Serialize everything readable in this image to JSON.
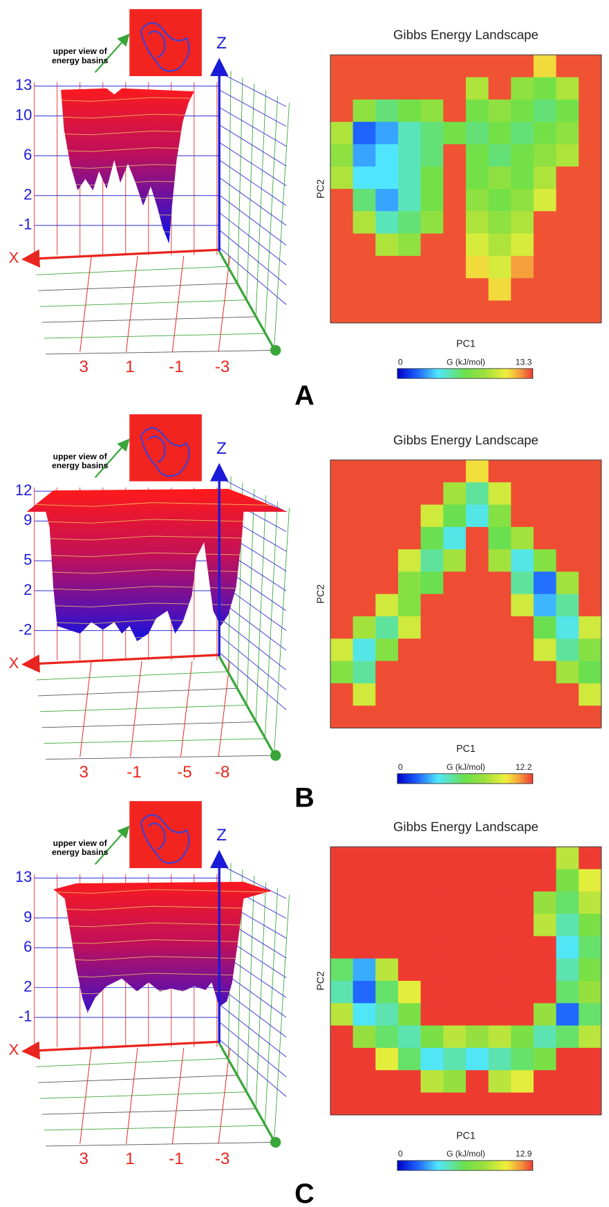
{
  "chart_data": [
    {
      "type": "surface3d",
      "annotation_lines": [
        "upper view of",
        "energy basins"
      ],
      "x_label": "X",
      "z_label": "Z",
      "xlim": [
        3,
        -3
      ],
      "xticks": [
        3,
        1,
        -1,
        -3
      ],
      "zlim": [
        -1,
        13
      ],
      "zticks": [
        13,
        10,
        6,
        2,
        -1
      ]
    },
    {
      "type": "heatmap",
      "title": "Gibbs Energy Landscape",
      "x_label": "PC1",
      "y_label": "PC2",
      "panel_label": "A",
      "colorbar": {
        "label": "G (kJ/mol)",
        "min": 0,
        "max": 13.3
      },
      "values": [
        [
          13,
          13,
          13,
          13,
          13,
          13,
          13,
          13,
          13,
          11,
          13,
          13
        ],
        [
          13,
          13,
          13,
          13,
          13,
          13,
          9,
          13,
          8,
          7,
          9,
          13
        ],
        [
          13,
          8,
          6,
          7,
          8,
          13,
          7,
          8,
          7,
          6,
          7,
          13
        ],
        [
          9,
          2,
          3,
          5,
          6,
          7,
          6,
          7,
          6,
          7,
          8,
          13
        ],
        [
          8,
          3,
          4,
          5,
          6,
          13,
          7,
          6,
          7,
          8,
          9,
          13
        ],
        [
          9,
          4,
          4,
          5,
          7,
          13,
          7,
          8,
          7,
          9,
          13,
          13
        ],
        [
          13,
          6,
          3,
          5,
          7,
          13,
          8,
          7,
          8,
          10,
          13,
          13
        ],
        [
          13,
          9,
          5,
          6,
          8,
          13,
          9,
          8,
          9,
          13,
          13,
          13
        ],
        [
          13,
          13,
          9,
          8,
          13,
          13,
          10,
          9,
          10,
          13,
          13,
          13
        ],
        [
          13,
          13,
          13,
          13,
          13,
          13,
          11,
          10,
          12,
          13,
          13,
          13
        ],
        [
          13,
          13,
          13,
          13,
          13,
          13,
          13,
          11,
          13,
          13,
          13,
          13
        ],
        [
          13,
          13,
          13,
          13,
          13,
          13,
          13,
          13,
          13,
          13,
          13,
          13
        ]
      ]
    },
    {
      "type": "surface3d",
      "annotation_lines": [
        "upper view of",
        "energy basins"
      ],
      "x_label": "X",
      "z_label": "Z",
      "xlim": [
        3,
        -8
      ],
      "xticks": [
        3,
        -1,
        -5,
        -8
      ],
      "zlim": [
        -2,
        12
      ],
      "zticks": [
        12,
        9,
        5,
        2,
        -2
      ]
    },
    {
      "type": "heatmap",
      "title": "Gibbs Energy Landscape",
      "x_label": "PC1",
      "y_label": "PC2",
      "panel_label": "B",
      "colorbar": {
        "label": "G (kJ/mol)",
        "min": 0,
        "max": 12.2
      },
      "values": [
        [
          12,
          12,
          12,
          12,
          12,
          12,
          10,
          12,
          12,
          12,
          12,
          12
        ],
        [
          12,
          12,
          12,
          12,
          12,
          8,
          5,
          9,
          12,
          12,
          12,
          12
        ],
        [
          12,
          12,
          12,
          12,
          9,
          6,
          4,
          7,
          12,
          12,
          12,
          12
        ],
        [
          12,
          12,
          12,
          12,
          6,
          4,
          12,
          6,
          8,
          12,
          12,
          12
        ],
        [
          12,
          12,
          12,
          9,
          5,
          8,
          12,
          8,
          4,
          7,
          12,
          12
        ],
        [
          12,
          12,
          12,
          7,
          6,
          12,
          12,
          12,
          5,
          2,
          8,
          12
        ],
        [
          12,
          12,
          9,
          7,
          12,
          12,
          12,
          12,
          9,
          3,
          5,
          12
        ],
        [
          12,
          8,
          5,
          9,
          12,
          12,
          12,
          12,
          12,
          6,
          4,
          9
        ],
        [
          9,
          4,
          7,
          12,
          12,
          12,
          12,
          12,
          12,
          9,
          5,
          7
        ],
        [
          7,
          5,
          12,
          12,
          12,
          12,
          12,
          12,
          12,
          12,
          8,
          6
        ],
        [
          12,
          9,
          12,
          12,
          12,
          12,
          12,
          12,
          12,
          12,
          12,
          9
        ],
        [
          12,
          12,
          12,
          12,
          12,
          12,
          12,
          12,
          12,
          12,
          12,
          12
        ]
      ]
    },
    {
      "type": "surface3d",
      "annotation_lines": [
        "upper view of",
        "energy basins"
      ],
      "x_label": "X",
      "z_label": "Z",
      "xlim": [
        3,
        -3
      ],
      "xticks": [
        3,
        1,
        -1,
        -3
      ],
      "zlim": [
        -1,
        13
      ],
      "zticks": [
        13,
        9,
        6,
        2,
        -1
      ]
    },
    {
      "type": "heatmap",
      "title": "Gibbs Energy Landscape",
      "x_label": "PC1",
      "y_label": "PC2",
      "panel_label": "C",
      "colorbar": {
        "label": "G (kJ/mol)",
        "min": 0,
        "max": 12.9
      },
      "values": [
        [
          12.9,
          12.9,
          12.9,
          12.9,
          12.9,
          12.9,
          12.9,
          12.9,
          12.9,
          12.9,
          9,
          12.9
        ],
        [
          12.9,
          12.9,
          12.9,
          12.9,
          12.9,
          12.9,
          12.9,
          12.9,
          12.9,
          12.9,
          7,
          10
        ],
        [
          12.9,
          12.9,
          12.9,
          12.9,
          12.9,
          12.9,
          12.9,
          12.9,
          12.9,
          8,
          6,
          9
        ],
        [
          12.9,
          12.9,
          12.9,
          12.9,
          12.9,
          12.9,
          12.9,
          12.9,
          12.9,
          9,
          5,
          7
        ],
        [
          12.9,
          12.9,
          12.9,
          12.9,
          12.9,
          12.9,
          12.9,
          12.9,
          12.9,
          12.9,
          4,
          6
        ],
        [
          6,
          3,
          9,
          12.9,
          12.9,
          12.9,
          12.9,
          12.9,
          12.9,
          12.9,
          5,
          7
        ],
        [
          5,
          2,
          6,
          10,
          12.9,
          12.9,
          12.9,
          12.9,
          12.9,
          12.9,
          6,
          8
        ],
        [
          9,
          4,
          5,
          7,
          12.9,
          12.9,
          12.9,
          12.9,
          12.9,
          8,
          2,
          6
        ],
        [
          12.9,
          8,
          6,
          5,
          7,
          9,
          8,
          9,
          7,
          5,
          6,
          9
        ],
        [
          12.9,
          12.9,
          10,
          6,
          4,
          5,
          4,
          5,
          6,
          7,
          12.9,
          12.9
        ],
        [
          12.9,
          12.9,
          12.9,
          12.9,
          9,
          8,
          12.9,
          9,
          10,
          12.9,
          12.9,
          12.9
        ],
        [
          12.9,
          12.9,
          12.9,
          12.9,
          12.9,
          12.9,
          12.9,
          12.9,
          12.9,
          12.9,
          12.9,
          12.9
        ]
      ]
    }
  ]
}
